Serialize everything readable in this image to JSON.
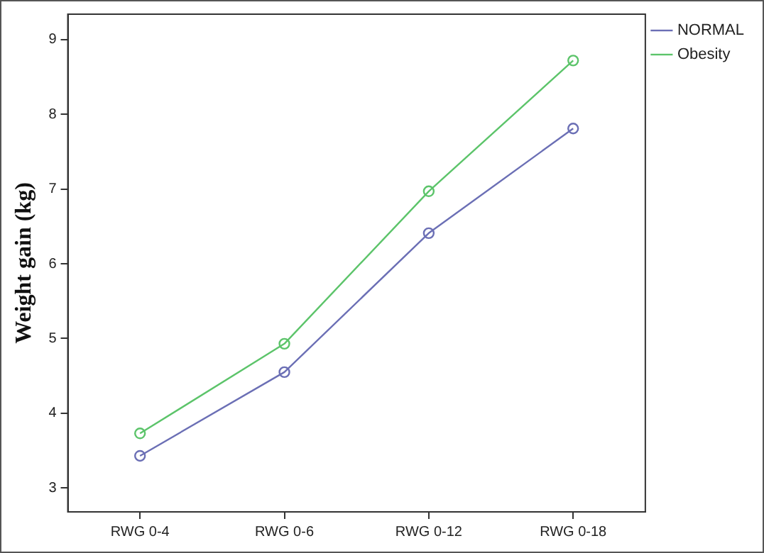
{
  "chart_data": {
    "type": "line",
    "ylabel": "Weight gain (kg)",
    "categories": [
      "RWG 0-4",
      "RWG 0-6",
      "RWG 0-12",
      "RWG 0-18"
    ],
    "series": [
      {
        "name": "NORMAL",
        "color": "#6b6fb5",
        "values": [
          3.43,
          4.55,
          6.41,
          7.81
        ]
      },
      {
        "name": "Obesity",
        "color": "#5cc46a",
        "values": [
          3.73,
          4.93,
          6.97,
          8.72
        ]
      }
    ],
    "ylim": [
      2.68,
      9.34
    ],
    "yticks": [
      3,
      4,
      5,
      6,
      7,
      8,
      9
    ],
    "grid": false,
    "legend": "top right",
    "marker": "circle",
    "line_style": "solid"
  }
}
